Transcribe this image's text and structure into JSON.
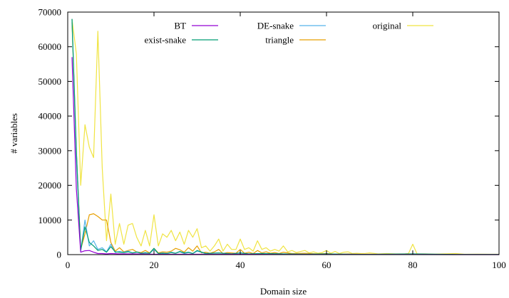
{
  "chart_data": {
    "type": "line",
    "title": "",
    "xlabel": "Domain size",
    "ylabel": "# variables",
    "xlim": [
      0,
      100
    ],
    "ylim": [
      0,
      70000
    ],
    "xticks": [
      0,
      20,
      40,
      60,
      80,
      100
    ],
    "yticks": [
      0,
      10000,
      20000,
      30000,
      40000,
      50000,
      60000,
      70000
    ],
    "grid": false,
    "legend_position": "top, inside plot",
    "series": [
      {
        "name": "BT",
        "color": "#9400d3",
        "points": [
          [
            1,
            57000
          ],
          [
            2,
            19000
          ],
          [
            3,
            700
          ],
          [
            4,
            1100
          ],
          [
            5,
            1200
          ],
          [
            6,
            700
          ],
          [
            7,
            300
          ],
          [
            8,
            300
          ],
          [
            9,
            200
          ],
          [
            10,
            300
          ],
          [
            12,
            200
          ],
          [
            15,
            200
          ],
          [
            20,
            100
          ],
          [
            25,
            100
          ],
          [
            30,
            100
          ],
          [
            40,
            100
          ],
          [
            50,
            50
          ],
          [
            60,
            50
          ],
          [
            70,
            20
          ],
          [
            80,
            20
          ],
          [
            90,
            10
          ],
          [
            100,
            10
          ]
        ]
      },
      {
        "name": "exist-snake",
        "color": "#009e73",
        "points": [
          [
            1,
            68000
          ],
          [
            2,
            30000
          ],
          [
            3,
            1200
          ],
          [
            4,
            8000
          ],
          [
            5,
            3500
          ],
          [
            6,
            2500
          ],
          [
            7,
            1200
          ],
          [
            8,
            1500
          ],
          [
            9,
            700
          ],
          [
            10,
            2300
          ],
          [
            11,
            800
          ],
          [
            12,
            700
          ],
          [
            13,
            600
          ],
          [
            14,
            800
          ],
          [
            15,
            500
          ],
          [
            16,
            700
          ],
          [
            17,
            400
          ],
          [
            18,
            500
          ],
          [
            19,
            400
          ],
          [
            20,
            1800
          ],
          [
            21,
            300
          ],
          [
            22,
            400
          ],
          [
            23,
            300
          ],
          [
            24,
            600
          ],
          [
            25,
            400
          ],
          [
            26,
            900
          ],
          [
            27,
            500
          ],
          [
            28,
            700
          ],
          [
            29,
            300
          ],
          [
            30,
            1200
          ],
          [
            32,
            300
          ],
          [
            35,
            500
          ],
          [
            38,
            200
          ],
          [
            40,
            500
          ],
          [
            42,
            200
          ],
          [
            45,
            300
          ],
          [
            50,
            200
          ],
          [
            55,
            100
          ],
          [
            60,
            200
          ],
          [
            65,
            100
          ],
          [
            70,
            80
          ],
          [
            80,
            200
          ],
          [
            90,
            50
          ],
          [
            100,
            50
          ]
        ]
      },
      {
        "name": "DE-snake",
        "color": "#56b4e9",
        "points": [
          [
            1,
            68000
          ],
          [
            2,
            28000
          ],
          [
            3,
            1000
          ],
          [
            4,
            10000
          ],
          [
            5,
            2500
          ],
          [
            6,
            4000
          ],
          [
            7,
            1500
          ],
          [
            8,
            2000
          ],
          [
            9,
            800
          ],
          [
            10,
            3000
          ],
          [
            11,
            600
          ],
          [
            12,
            900
          ],
          [
            13,
            700
          ],
          [
            14,
            1000
          ],
          [
            15,
            500
          ],
          [
            16,
            800
          ],
          [
            17,
            400
          ],
          [
            18,
            600
          ],
          [
            19,
            300
          ],
          [
            20,
            1500
          ],
          [
            21,
            300
          ],
          [
            22,
            500
          ],
          [
            23,
            300
          ],
          [
            24,
            700
          ],
          [
            25,
            400
          ],
          [
            26,
            800
          ],
          [
            27,
            300
          ],
          [
            28,
            600
          ],
          [
            29,
            300
          ],
          [
            30,
            1000
          ],
          [
            32,
            300
          ],
          [
            35,
            500
          ],
          [
            38,
            200
          ],
          [
            40,
            500
          ],
          [
            42,
            200
          ],
          [
            45,
            300
          ],
          [
            50,
            200
          ],
          [
            55,
            100
          ],
          [
            60,
            150
          ],
          [
            65,
            100
          ],
          [
            70,
            80
          ],
          [
            80,
            100
          ],
          [
            90,
            50
          ],
          [
            100,
            50
          ]
        ]
      },
      {
        "name": "triangle",
        "color": "#e69f00",
        "points": [
          [
            1,
            67000
          ],
          [
            2,
            30000
          ],
          [
            3,
            1500
          ],
          [
            4,
            6000
          ],
          [
            5,
            11500
          ],
          [
            6,
            11800
          ],
          [
            7,
            11000
          ],
          [
            8,
            10000
          ],
          [
            9,
            10000
          ],
          [
            10,
            3500
          ],
          [
            11,
            1000
          ],
          [
            12,
            2000
          ],
          [
            13,
            800
          ],
          [
            14,
            1200
          ],
          [
            15,
            1500
          ],
          [
            16,
            800
          ],
          [
            17,
            600
          ],
          [
            18,
            1200
          ],
          [
            19,
            500
          ],
          [
            20,
            1800
          ],
          [
            21,
            500
          ],
          [
            22,
            800
          ],
          [
            23,
            700
          ],
          [
            24,
            1000
          ],
          [
            25,
            1800
          ],
          [
            26,
            1400
          ],
          [
            27,
            700
          ],
          [
            28,
            2000
          ],
          [
            29,
            1000
          ],
          [
            30,
            2500
          ],
          [
            31,
            500
          ],
          [
            32,
            700
          ],
          [
            33,
            400
          ],
          [
            34,
            800
          ],
          [
            35,
            1500
          ],
          [
            36,
            300
          ],
          [
            37,
            600
          ],
          [
            38,
            500
          ],
          [
            39,
            400
          ],
          [
            40,
            1500
          ],
          [
            41,
            400
          ],
          [
            42,
            700
          ],
          [
            43,
            300
          ],
          [
            44,
            1200
          ],
          [
            45,
            500
          ],
          [
            46,
            800
          ],
          [
            47,
            400
          ],
          [
            48,
            600
          ],
          [
            49,
            300
          ],
          [
            50,
            700
          ],
          [
            52,
            300
          ],
          [
            55,
            400
          ],
          [
            58,
            200
          ],
          [
            60,
            300
          ],
          [
            62,
            150
          ],
          [
            65,
            200
          ],
          [
            68,
            100
          ],
          [
            70,
            100
          ],
          [
            75,
            80
          ],
          [
            80,
            200
          ],
          [
            85,
            50
          ],
          [
            90,
            50
          ],
          [
            95,
            30
          ],
          [
            100,
            30
          ]
        ]
      },
      {
        "name": "original",
        "color": "#f0e442",
        "points": [
          [
            1,
            68000
          ],
          [
            2,
            58000
          ],
          [
            3,
            20000
          ],
          [
            4,
            37500
          ],
          [
            5,
            31000
          ],
          [
            6,
            28000
          ],
          [
            7,
            64500
          ],
          [
            8,
            25000
          ],
          [
            9,
            4000
          ],
          [
            10,
            17500
          ],
          [
            11,
            3000
          ],
          [
            12,
            9000
          ],
          [
            13,
            3000
          ],
          [
            14,
            8500
          ],
          [
            15,
            9000
          ],
          [
            16,
            5000
          ],
          [
            17,
            2500
          ],
          [
            18,
            7000
          ],
          [
            19,
            2500
          ],
          [
            20,
            11500
          ],
          [
            21,
            2500
          ],
          [
            22,
            6000
          ],
          [
            23,
            5000
          ],
          [
            24,
            7000
          ],
          [
            25,
            4000
          ],
          [
            26,
            6500
          ],
          [
            27,
            3000
          ],
          [
            28,
            7000
          ],
          [
            29,
            5000
          ],
          [
            30,
            7500
          ],
          [
            31,
            2000
          ],
          [
            32,
            2500
          ],
          [
            33,
            1000
          ],
          [
            34,
            2500
          ],
          [
            35,
            4500
          ],
          [
            36,
            1000
          ],
          [
            37,
            3000
          ],
          [
            38,
            1500
          ],
          [
            39,
            1500
          ],
          [
            40,
            4500
          ],
          [
            41,
            1500
          ],
          [
            42,
            2000
          ],
          [
            43,
            1000
          ],
          [
            44,
            4000
          ],
          [
            45,
            1500
          ],
          [
            46,
            2000
          ],
          [
            47,
            1000
          ],
          [
            48,
            1500
          ],
          [
            49,
            1000
          ],
          [
            50,
            2500
          ],
          [
            51,
            800
          ],
          [
            52,
            1200
          ],
          [
            53,
            600
          ],
          [
            54,
            900
          ],
          [
            55,
            1200
          ],
          [
            56,
            500
          ],
          [
            57,
            800
          ],
          [
            58,
            400
          ],
          [
            59,
            600
          ],
          [
            60,
            1200
          ],
          [
            61,
            400
          ],
          [
            62,
            900
          ],
          [
            63,
            300
          ],
          [
            64,
            700
          ],
          [
            65,
            800
          ],
          [
            66,
            300
          ],
          [
            67,
            400
          ],
          [
            68,
            300
          ],
          [
            69,
            350
          ],
          [
            70,
            500
          ],
          [
            72,
            200
          ],
          [
            74,
            300
          ],
          [
            76,
            200
          ],
          [
            78,
            200
          ],
          [
            79,
            300
          ],
          [
            80,
            3000
          ],
          [
            81,
            200
          ],
          [
            83,
            200
          ],
          [
            85,
            150
          ],
          [
            87,
            200
          ],
          [
            90,
            300
          ],
          [
            92,
            100
          ],
          [
            95,
            150
          ],
          [
            98,
            100
          ],
          [
            100,
            100
          ]
        ]
      }
    ]
  }
}
